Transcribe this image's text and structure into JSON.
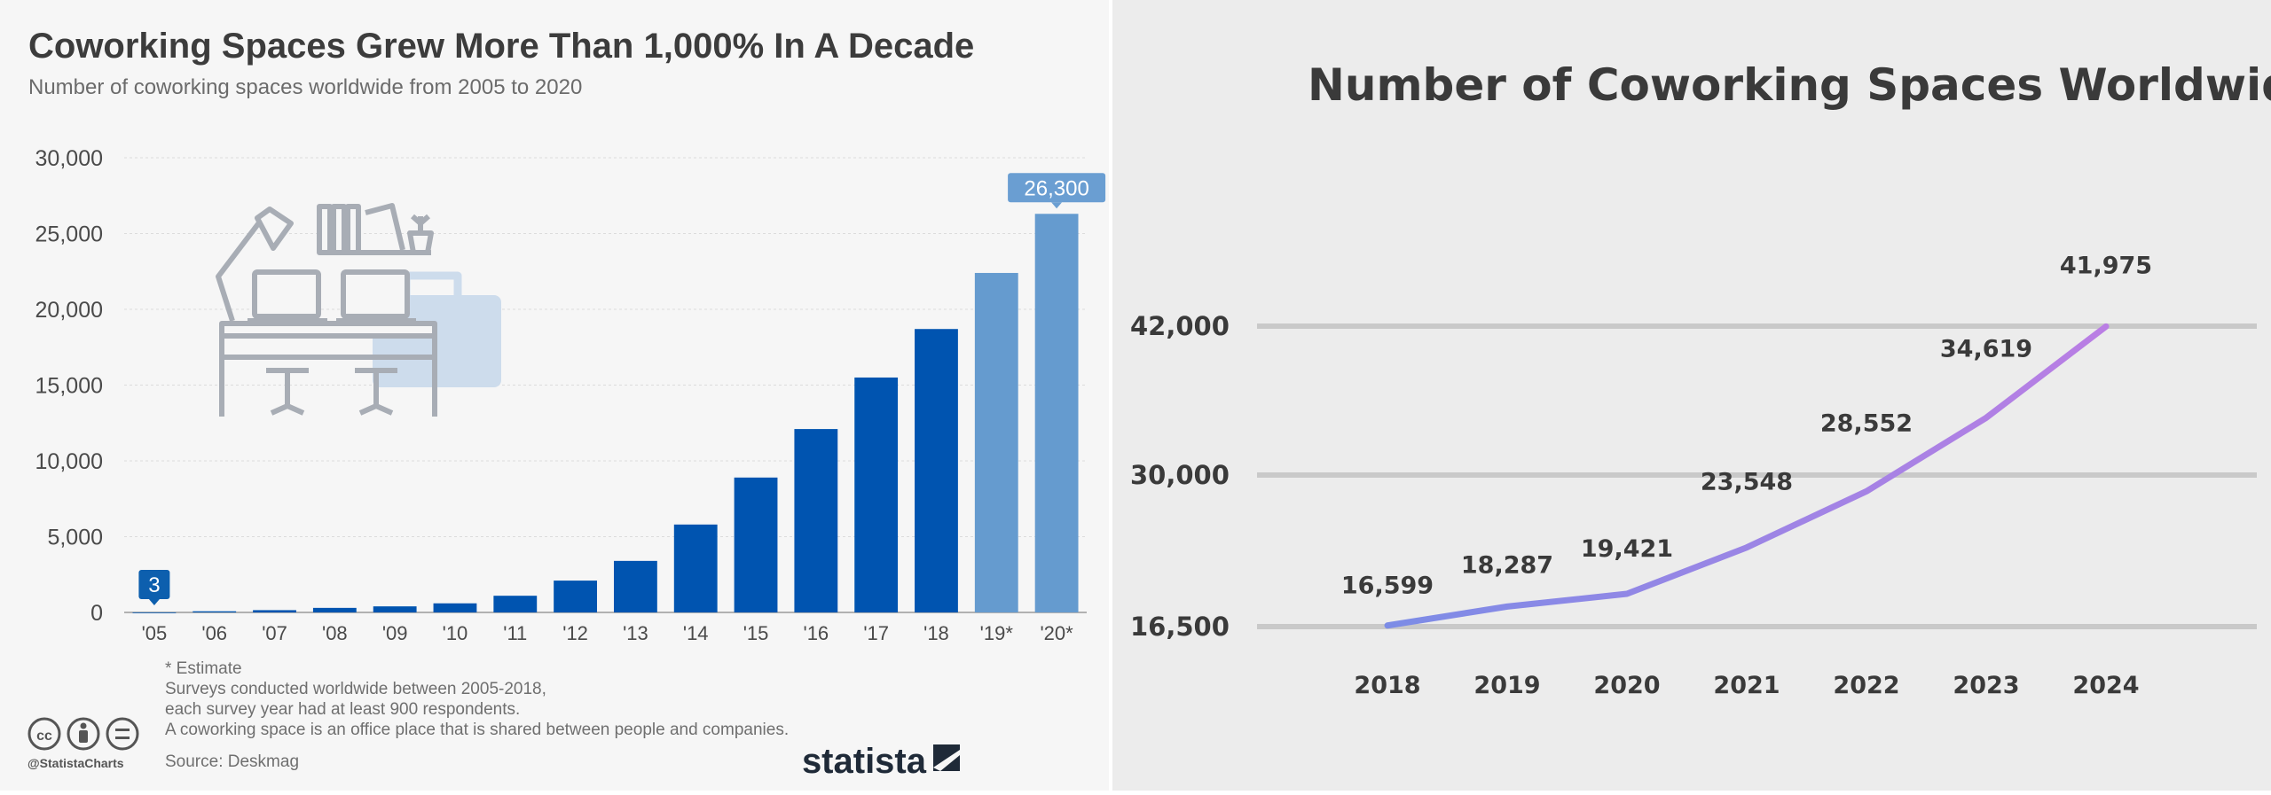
{
  "left_chart": {
    "title": "Coworking Spaces Grew More Than 1,000% In A Decade",
    "subtitle": "Number of coworking spaces worldwide from 2005 to 2020",
    "notes": [
      "* Estimate",
      "Surveys conducted worldwide between 2005-2018,",
      "each survey year had at least 900 respondents.",
      "A coworking space is an office place that is shared between people and companies."
    ],
    "source": "Source: Deskmag",
    "credit": "@StatistaCharts",
    "brand": "statista",
    "icons": [
      "cc-icon",
      "attribution-icon",
      "no-derivatives-icon",
      "statista-logo",
      "desk-illustration"
    ]
  },
  "right_chart": {
    "title": "Number of Coworking Spaces Worldwide"
  },
  "chart_data": [
    {
      "type": "bar",
      "title": "Coworking Spaces Grew More Than 1,000% In A Decade",
      "subtitle": "Number of coworking spaces worldwide from 2005 to 2020",
      "categories": [
        "'05",
        "'06",
        "'07",
        "'08",
        "'09",
        "'10",
        "'11",
        "'12",
        "'13",
        "'14",
        "'15",
        "'16",
        "'17",
        "'18",
        "'19*",
        "'20*"
      ],
      "values": [
        3,
        75,
        150,
        300,
        400,
        600,
        1100,
        2100,
        3400,
        5800,
        8900,
        12100,
        15500,
        18700,
        22400,
        26300
      ],
      "estimate": [
        false,
        false,
        false,
        false,
        false,
        false,
        false,
        false,
        false,
        false,
        false,
        false,
        false,
        false,
        true,
        true
      ],
      "callouts": [
        {
          "category": "'05",
          "label": "3"
        },
        {
          "category": "'20*",
          "label": "26,300"
        }
      ],
      "yticks": [
        0,
        5000,
        10000,
        15000,
        20000,
        25000,
        30000
      ],
      "ytick_labels": [
        "0",
        "5,000",
        "10,000",
        "15,000",
        "20,000",
        "25,000",
        "30,000"
      ],
      "ylim": [
        0,
        30000
      ],
      "grid": true,
      "colors": {
        "actual": "#0054b0",
        "estimate": "#659bcf",
        "callout_first": "#0d5fae",
        "callout_last": "#6a9ed2"
      },
      "xlabel": "",
      "ylabel": ""
    },
    {
      "type": "line",
      "title": "Number of Coworking Spaces Worldwide",
      "x": [
        "2018",
        "2019",
        "2020",
        "2021",
        "2022",
        "2023",
        "2024"
      ],
      "values": [
        16599,
        18287,
        19421,
        23548,
        28552,
        34619,
        41975
      ],
      "value_labels": [
        "16,599",
        "18,287",
        "19,421",
        "23,548",
        "28,552",
        "34,619",
        "41,975"
      ],
      "gridline_labels": [
        "16,500",
        "30,000",
        "42,000"
      ],
      "grid": true,
      "colors": {
        "line_start": "#7c8ce6",
        "line_end": "#ba7ee4",
        "grid": "#c9c9c9"
      }
    }
  ]
}
